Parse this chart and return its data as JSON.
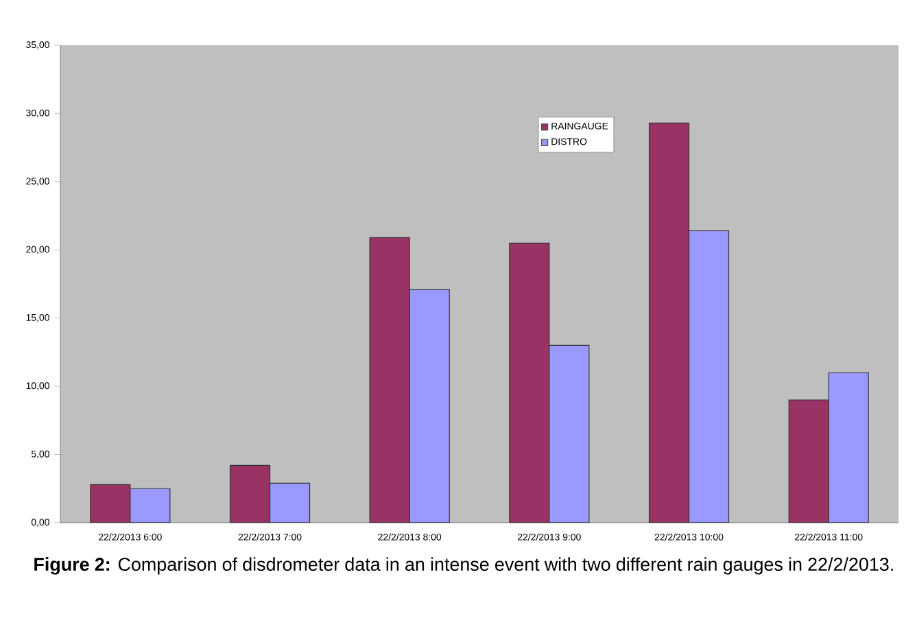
{
  "chart_data": {
    "type": "bar",
    "categories": [
      "22/2/2013 6:00",
      "22/2/2013 7:00",
      "22/2/2013 8:00",
      "22/2/2013 9:00",
      "22/2/2013 10:00",
      "22/2/2013 11:00"
    ],
    "series": [
      {
        "name": "RAINGAUGE",
        "color": "#993366",
        "values": [
          2.8,
          4.2,
          20.9,
          20.5,
          29.3,
          9.0
        ]
      },
      {
        "name": "DISTRO",
        "color": "#9999ff",
        "values": [
          2.5,
          2.9,
          17.1,
          13.0,
          21.4,
          11.0
        ]
      }
    ],
    "ylim": [
      0,
      35
    ],
    "yticks": [
      {
        "value": 0,
        "label": "0,00"
      },
      {
        "value": 5,
        "label": "5,00"
      },
      {
        "value": 10,
        "label": "10,00"
      },
      {
        "value": 15,
        "label": "15,00"
      },
      {
        "value": 20,
        "label": "20,00"
      },
      {
        "value": 25,
        "label": "25,00"
      },
      {
        "value": 30,
        "label": "30,00"
      },
      {
        "value": 35,
        "label": "35,00"
      }
    ],
    "grid": false,
    "legend": "top",
    "annotations": [
      "**Figure 2:** Comparison of disdrometer data in an intense event with two different rain gauges in 22/2/2013."
    ]
  }
}
